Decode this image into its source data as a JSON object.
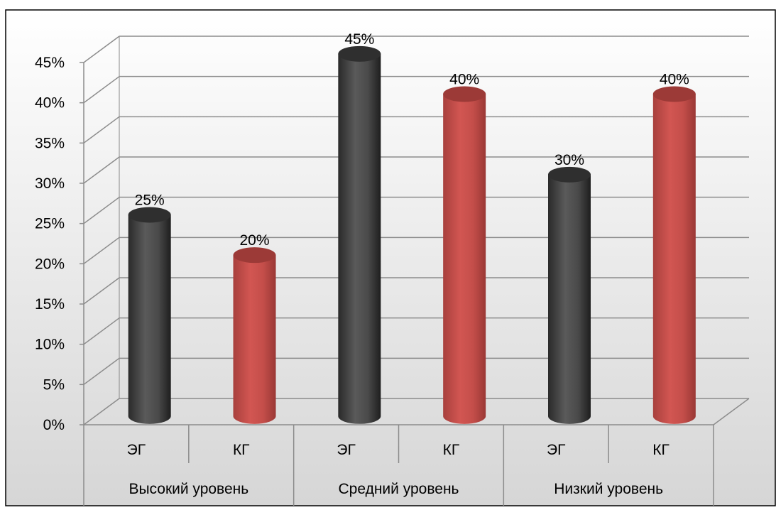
{
  "chart_data": {
    "type": "bar",
    "title": "",
    "xlabel": "",
    "ylabel": "",
    "ylim": [
      0,
      45
    ],
    "y_ticks": [
      "0%",
      "5%",
      "10%",
      "15%",
      "20%",
      "25%",
      "30%",
      "35%",
      "40%",
      "45%"
    ],
    "groups": [
      "Высокий уровень",
      "Средний уровень",
      "Низкий уровень"
    ],
    "categories": [
      "ЭГ",
      "КГ",
      "ЭГ",
      "КГ",
      "ЭГ",
      "КГ"
    ],
    "values": [
      25,
      20,
      45,
      40,
      30,
      40
    ],
    "data_labels": [
      "25%",
      "20%",
      "45%",
      "40%",
      "30%",
      "40%"
    ],
    "bar_colors": [
      "#4b4b4b",
      "#c0504d",
      "#4b4b4b",
      "#c0504d",
      "#4b4b4b",
      "#c0504d"
    ],
    "grid": true,
    "legend": "none",
    "style": "3d-cylinder"
  }
}
